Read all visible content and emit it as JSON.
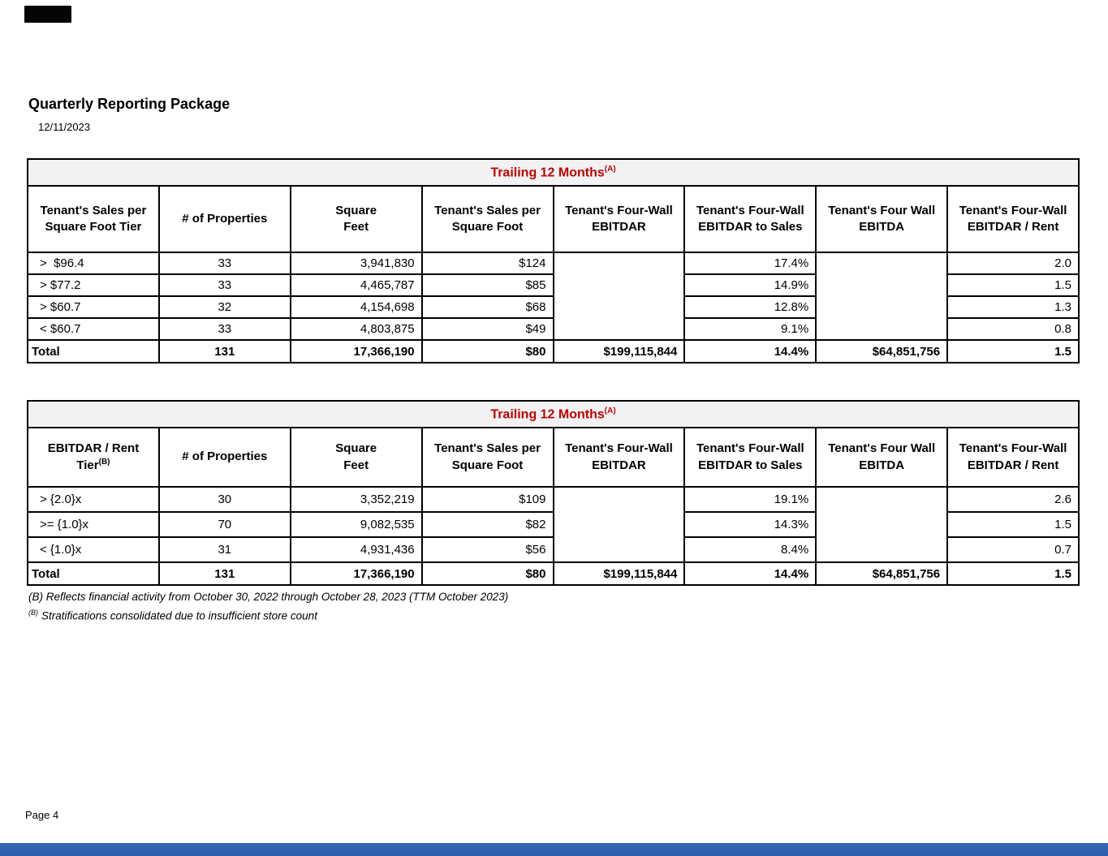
{
  "page": {
    "title": "Quarterly Reporting Package",
    "date": "12/11/2023",
    "page_number": "Page 4",
    "accent_red": "#C00000",
    "table_title_bg": "#f2f2f2",
    "footer_bar_color": "#2a5cab",
    "redaction_color": "#050505",
    "footnotes": [
      {
        "sup": "",
        "text": "(B) Reflects financial activity from October 30, 2022 through October 28, 2023 (TTM October 2023)"
      },
      {
        "sup": "(B)",
        "text": "Stratifications consolidated due to insufficient store count"
      }
    ]
  },
  "tables": [
    {
      "name": "sales-per-square-foot-tier-table",
      "title": "Trailing 12 Months",
      "title_sup": "(A)",
      "columns": [
        {
          "lines": [
            "Tenant's Sales per",
            "Square Foot Tier"
          ],
          "sup": "",
          "align": "al"
        },
        {
          "lines": [
            "# of Properties"
          ],
          "sup": "",
          "align": "ac"
        },
        {
          "lines": [
            "Square",
            "Feet"
          ],
          "sup": "",
          "align": "ar"
        },
        {
          "lines": [
            "Tenant's Sales per",
            "Square Foot"
          ],
          "sup": "",
          "align": "ar"
        },
        {
          "lines": [
            "Tenant's Four-Wall",
            "EBITDAR"
          ],
          "sup": "",
          "align": "ar"
        },
        {
          "lines": [
            "Tenant's Four-Wall",
            "EBITDAR to Sales"
          ],
          "sup": "",
          "align": "ar"
        },
        {
          "lines": [
            "Tenant's Four Wall",
            "EBITDA"
          ],
          "sup": "",
          "align": "ar"
        },
        {
          "lines": [
            "Tenant's Four-Wall",
            "EBITDAR / Rent"
          ],
          "sup": "",
          "align": "ar"
        }
      ],
      "merged_blank_columns": [
        4,
        6
      ],
      "rows": [
        [
          ">  $96.4",
          "33",
          "3,941,830",
          "$124",
          "",
          "17.4%",
          "",
          "2.0"
        ],
        [
          "> $77.2",
          "33",
          "4,465,787",
          "$85",
          "",
          "14.9%",
          "",
          "1.5"
        ],
        [
          "> $60.7",
          "32",
          "4,154,698",
          "$68",
          "",
          "12.8%",
          "",
          "1.3"
        ],
        [
          "< $60.7",
          "33",
          "4,803,875",
          "$49",
          "",
          "9.1%",
          "",
          "0.8"
        ]
      ],
      "total_row": [
        "Total",
        "131",
        "17,366,190",
        "$80",
        "$199,115,844",
        "14.4%",
        "$64,851,756",
        "1.5"
      ]
    },
    {
      "name": "ebitdar-rent-tier-table",
      "title": "Trailing 12 Months",
      "title_sup": "(A)",
      "columns": [
        {
          "lines": [
            "EBITDAR / Rent",
            "Tier"
          ],
          "sup": "(B)",
          "align": "al"
        },
        {
          "lines": [
            "# of Properties"
          ],
          "sup": "",
          "align": "ac"
        },
        {
          "lines": [
            "Square",
            "Feet"
          ],
          "sup": "",
          "align": "ar"
        },
        {
          "lines": [
            "Tenant's Sales per",
            "Square Foot"
          ],
          "sup": "",
          "align": "ar"
        },
        {
          "lines": [
            "Tenant's Four-Wall",
            "EBITDAR"
          ],
          "sup": "",
          "align": "ar"
        },
        {
          "lines": [
            "Tenant's Four-Wall",
            "EBITDAR to Sales"
          ],
          "sup": "",
          "align": "ar"
        },
        {
          "lines": [
            "Tenant's Four Wall",
            "EBITDA"
          ],
          "sup": "",
          "align": "ar"
        },
        {
          "lines": [
            "Tenant's Four-Wall",
            "EBITDAR / Rent"
          ],
          "sup": "",
          "align": "ar"
        }
      ],
      "merged_blank_columns": [
        4,
        6
      ],
      "rows": [
        [
          "> {2.0}x",
          "30",
          "3,352,219",
          "$109",
          "",
          "19.1%",
          "",
          "2.6"
        ],
        [
          ">= {1.0}x",
          "70",
          "9,082,535",
          "$82",
          "",
          "14.3%",
          "",
          "1.5"
        ],
        [
          "< {1.0}x",
          "31",
          "4,931,436",
          "$56",
          "",
          "8.4%",
          "",
          "0.7"
        ]
      ],
      "total_row": [
        "Total",
        "131",
        "17,366,190",
        "$80",
        "$199,115,844",
        "14.4%",
        "$64,851,756",
        "1.5"
      ]
    }
  ]
}
